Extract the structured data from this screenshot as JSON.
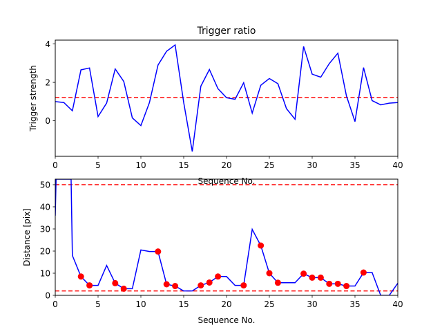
{
  "chart_data": [
    {
      "type": "line",
      "title": "Trigger ratio",
      "xlabel": "Sequence No.",
      "ylabel": "Trigger strength",
      "xlim": [
        0,
        40
      ],
      "ylim": [
        -1.85,
        4.2
      ],
      "xticks": [
        0,
        5,
        10,
        15,
        20,
        25,
        30,
        35,
        40
      ],
      "yticks": [
        0,
        2,
        4
      ],
      "line_color": "#0000ff",
      "threshold": {
        "value": 1.2,
        "color": "#ff0000",
        "style": "dashed"
      },
      "series": [
        {
          "x": [
            0,
            1,
            2,
            3,
            4,
            5,
            6,
            7,
            8,
            9,
            10,
            11,
            12,
            13,
            14,
            15,
            16,
            17,
            18,
            19,
            20,
            21,
            22,
            23,
            24,
            25,
            26,
            27,
            28,
            29,
            30,
            31,
            32,
            33,
            34,
            35,
            36,
            37,
            38,
            39,
            40
          ],
          "values": [
            1.0,
            0.95,
            0.52,
            2.65,
            2.75,
            0.22,
            0.92,
            2.7,
            2.05,
            0.15,
            -0.25,
            0.95,
            2.9,
            3.62,
            3.95,
            0.95,
            -1.6,
            1.8,
            2.67,
            1.67,
            1.2,
            1.12,
            1.98,
            0.4,
            1.85,
            2.2,
            1.93,
            0.63,
            0.08,
            3.87,
            2.43,
            2.27,
            2.98,
            3.52,
            1.3,
            -0.04,
            2.77,
            1.05,
            0.83,
            0.92,
            0.95
          ]
        }
      ]
    },
    {
      "type": "line",
      "title": "",
      "xlabel": "Sequence No.",
      "ylabel": "Distance [pix]",
      "xlim": [
        0,
        40
      ],
      "ylim": [
        0,
        52.5
      ],
      "xticks": [
        0,
        5,
        10,
        15,
        20,
        25,
        30,
        35,
        40
      ],
      "yticks": [
        0,
        10,
        20,
        30,
        40,
        50
      ],
      "line_color": "#0000ff",
      "marker_color": "#ff0000",
      "thresholds": [
        {
          "value": 50,
          "color": "#ff0000",
          "style": "dashed"
        },
        {
          "value": 2,
          "color": "#ff0000",
          "style": "dashed"
        }
      ],
      "series": [
        {
          "x": [
            0,
            0.1,
            1.85,
            2,
            3,
            4,
            5,
            6,
            7,
            8,
            9,
            10,
            11,
            12,
            13,
            14,
            15,
            16,
            17,
            18,
            19,
            20,
            21,
            22,
            23,
            24,
            25,
            26,
            27,
            28,
            29,
            30,
            31,
            32,
            33,
            34,
            35,
            36,
            37,
            38,
            39,
            40
          ],
          "values": [
            36,
            52.5,
            52.5,
            18,
            8.5,
            4.5,
            4.5,
            13.5,
            5.5,
            3,
            3,
            20.5,
            19.8,
            19.8,
            5,
            4.2,
            2,
            2,
            4.5,
            5.8,
            8.5,
            8.5,
            4.5,
            4.5,
            29.8,
            22.5,
            10,
            5.7,
            5.7,
            5.7,
            9.8,
            8,
            8,
            5.2,
            5.2,
            4.2,
            4.2,
            10.3,
            10.3,
            0,
            0,
            5.5
          ]
        }
      ],
      "markers": {
        "x": [
          3,
          4,
          7,
          8,
          12,
          13,
          14,
          17,
          18,
          19,
          22,
          24,
          25,
          26,
          29,
          30,
          31,
          32,
          33,
          34,
          36
        ],
        "values": [
          8.5,
          4.5,
          5.5,
          3,
          19.8,
          5,
          4.2,
          4.5,
          5.8,
          8.5,
          4.5,
          22.5,
          10,
          5.7,
          9.8,
          8,
          8,
          5.2,
          5.2,
          4.2,
          10.3
        ]
      }
    }
  ]
}
